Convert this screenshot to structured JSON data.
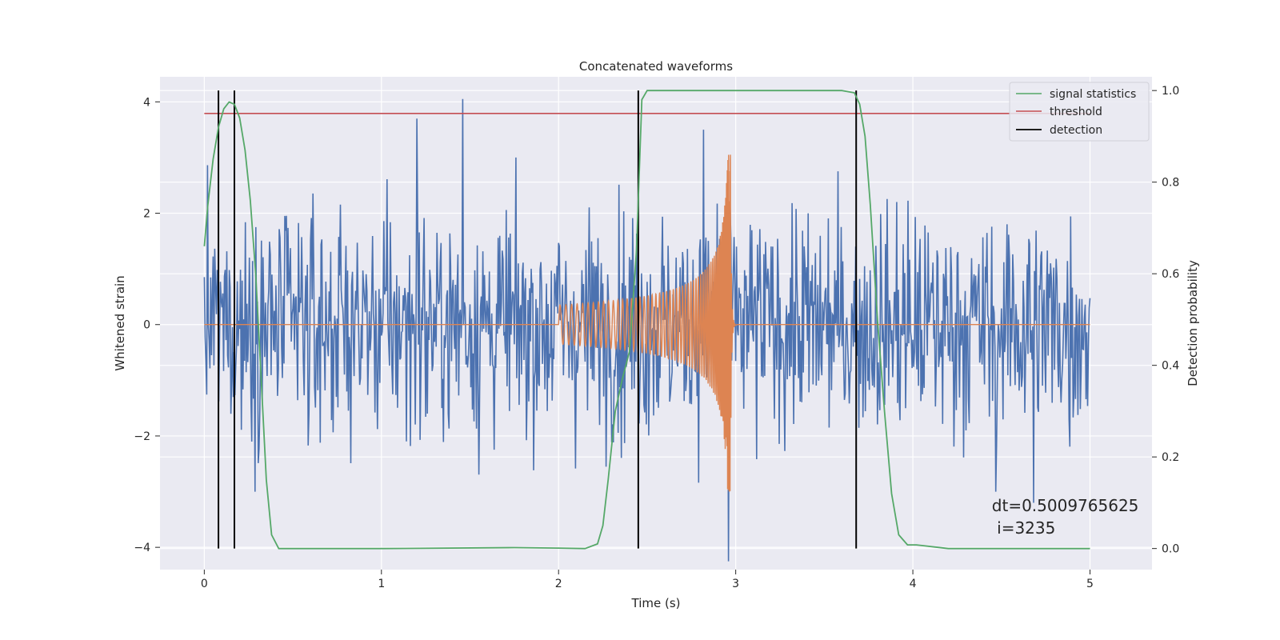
{
  "chart_data": {
    "type": "line",
    "title": "Concatenated waveforms",
    "xlabel": "Time (s)",
    "ylabel": "Whitened strain",
    "y2label": "Detection probability",
    "xlim": [
      -0.25,
      5.35
    ],
    "ylim": [
      -4.4,
      4.45
    ],
    "y2lim": [
      -0.046,
      1.03
    ],
    "x_ticks": [
      0,
      1,
      2,
      3,
      4,
      5
    ],
    "x_tick_labels": [
      "0",
      "1",
      "2",
      "3",
      "4",
      "5"
    ],
    "y_ticks": [
      -4,
      -2,
      0,
      2,
      4
    ],
    "y_tick_labels": [
      "−4",
      "−2",
      "0",
      "2",
      "4"
    ],
    "y2_ticks": [
      0.0,
      0.2,
      0.4,
      0.6,
      0.8,
      1.0
    ],
    "y2_tick_labels": [
      "0.0",
      "0.2",
      "0.4",
      "0.6",
      "0.8",
      "1.0"
    ],
    "grid": true,
    "legend_position": "top-right",
    "colors": {
      "background": "#eaeaf2",
      "grid": "#ffffff",
      "strain": "#4c72b0",
      "template": "#dd8452",
      "signal_statistics": "#55a868",
      "threshold": "#c44e52",
      "detection": "#000000"
    },
    "series": [
      {
        "name": "signal statistics",
        "axis": "right",
        "x": [
          0.0,
          0.02,
          0.05,
          0.08,
          0.11,
          0.14,
          0.17,
          0.2,
          0.23,
          0.26,
          0.29,
          0.32,
          0.35,
          0.38,
          0.42,
          0.6,
          1.0,
          1.75,
          2.0,
          2.15,
          2.22,
          2.25,
          2.28,
          2.32,
          2.36,
          2.4,
          2.44,
          2.47,
          2.5,
          2.6,
          3.0,
          3.6,
          3.67,
          3.7,
          3.73,
          3.76,
          3.8,
          3.84,
          3.88,
          3.92,
          3.97,
          4.02,
          4.2,
          5.0
        ],
        "y": [
          0.66,
          0.75,
          0.85,
          0.92,
          0.96,
          0.975,
          0.97,
          0.94,
          0.87,
          0.76,
          0.6,
          0.38,
          0.15,
          0.03,
          0.0,
          0.0,
          0.0,
          0.002,
          0.001,
          0.0,
          0.01,
          0.05,
          0.15,
          0.3,
          0.37,
          0.43,
          0.65,
          0.98,
          1.0,
          1.0,
          1.0,
          1.0,
          0.995,
          0.97,
          0.9,
          0.75,
          0.5,
          0.3,
          0.12,
          0.03,
          0.008,
          0.008,
          0.0,
          0.0
        ]
      },
      {
        "name": "threshold",
        "axis": "right",
        "x": [
          0.0,
          5.0
        ],
        "y": [
          0.95,
          0.95
        ]
      },
      {
        "name": "detection",
        "type": "vlines",
        "x": [
          0.08,
          0.17,
          2.45,
          3.68
        ],
        "y_range": [
          0.0,
          1.0
        ]
      },
      {
        "name": "",
        "description": "strain",
        "axis": "left",
        "x_range": [
          0.0,
          5.0
        ],
        "envelope_typical": 1.0,
        "peak_values": [
          {
            "x": 1.46,
            "y": 4.05
          },
          {
            "x": 1.2,
            "y": 3.7
          },
          {
            "x": 2.96,
            "y": -4.25
          },
          {
            "x": 2.82,
            "y": 3.5
          },
          {
            "x": 4.47,
            "y": -3.0
          },
          {
            "x": 4.68,
            "y": -3.2
          }
        ]
      },
      {
        "name": "",
        "description": "template",
        "axis": "left",
        "x_range": [
          0.0,
          5.0
        ],
        "chirp_start": 2.0,
        "chirp_end": 2.97,
        "amplitude_start": 0.35,
        "amplitude_peak": 3.05
      }
    ],
    "annotations": [
      {
        "text": "dt=0.5009765625",
        "x": 4.5,
        "y": -3.35
      },
      {
        "text": " i=3235",
        "x": 4.5,
        "y": -3.75
      }
    ]
  }
}
